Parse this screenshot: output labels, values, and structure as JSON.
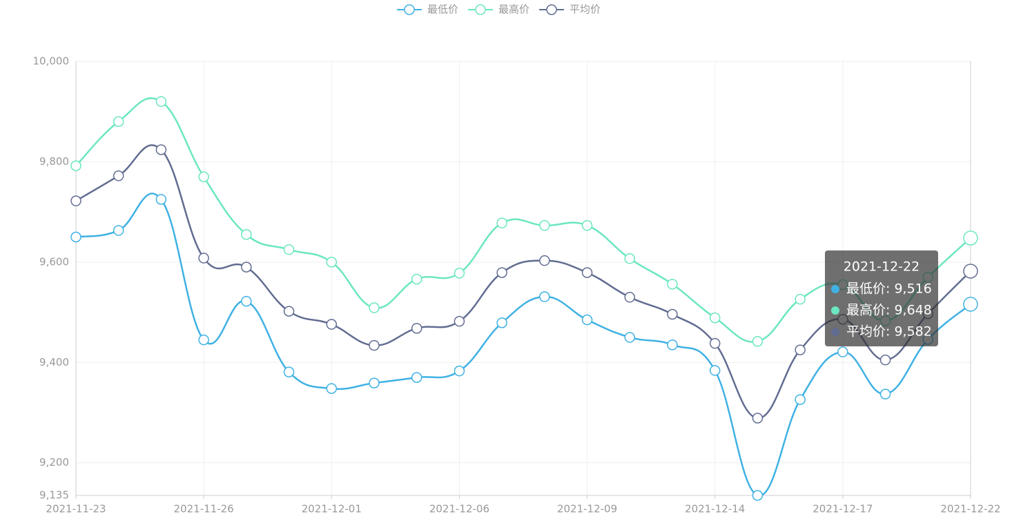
{
  "chart_data": {
    "type": "line",
    "smooth": true,
    "grid": true,
    "legend_position": "top",
    "categories": [
      "2021-11-23",
      null,
      null,
      "2021-11-26",
      null,
      null,
      "2021-12-01",
      null,
      null,
      "2021-12-06",
      null,
      null,
      "2021-12-09",
      null,
      null,
      "2021-12-14",
      null,
      null,
      "2021-12-17",
      null,
      null,
      "2021-12-22"
    ],
    "ylim": [
      9135,
      10000
    ],
    "yticks": [
      {
        "value": 9135,
        "label": "9,135"
      },
      {
        "value": 9200,
        "label": "9,200"
      },
      {
        "value": 9400,
        "label": "9,400"
      },
      {
        "value": 9600,
        "label": "9,600"
      },
      {
        "value": 9800,
        "label": "9,800"
      },
      {
        "value": 10000,
        "label": "10,000"
      }
    ],
    "series": [
      {
        "name": "最低价",
        "color": "#3fb1e3",
        "values": [
          9650,
          9663,
          9725,
          9445,
          9522,
          9381,
          9348,
          9359,
          9370,
          9383,
          9479,
          9531,
          9485,
          9450,
          9435,
          9384,
          9135,
          9326,
          9421,
          9337,
          9446,
          9516
        ]
      },
      {
        "name": "最高价",
        "color": "#6be6c1",
        "values": [
          9792,
          9880,
          9920,
          9770,
          9655,
          9625,
          9600,
          9509,
          9566,
          9578,
          9678,
          9673,
          9673,
          9607,
          9556,
          9489,
          9442,
          9526,
          9555,
          9483,
          9570,
          9648
        ]
      },
      {
        "name": "平均价",
        "color": "#626c91",
        "values": [
          9722,
          9772,
          9824,
          9608,
          9590,
          9502,
          9476,
          9434,
          9468,
          9482,
          9579,
          9603,
          9579,
          9530,
          9496,
          9438,
          9289,
          9425,
          9486,
          9405,
          9497,
          9582
        ]
      }
    ],
    "tooltip": {
      "items": [
        "最低价: 9,516",
        "最高价: 9,648",
        "平均价: 9,582"
      ]
    }
  }
}
